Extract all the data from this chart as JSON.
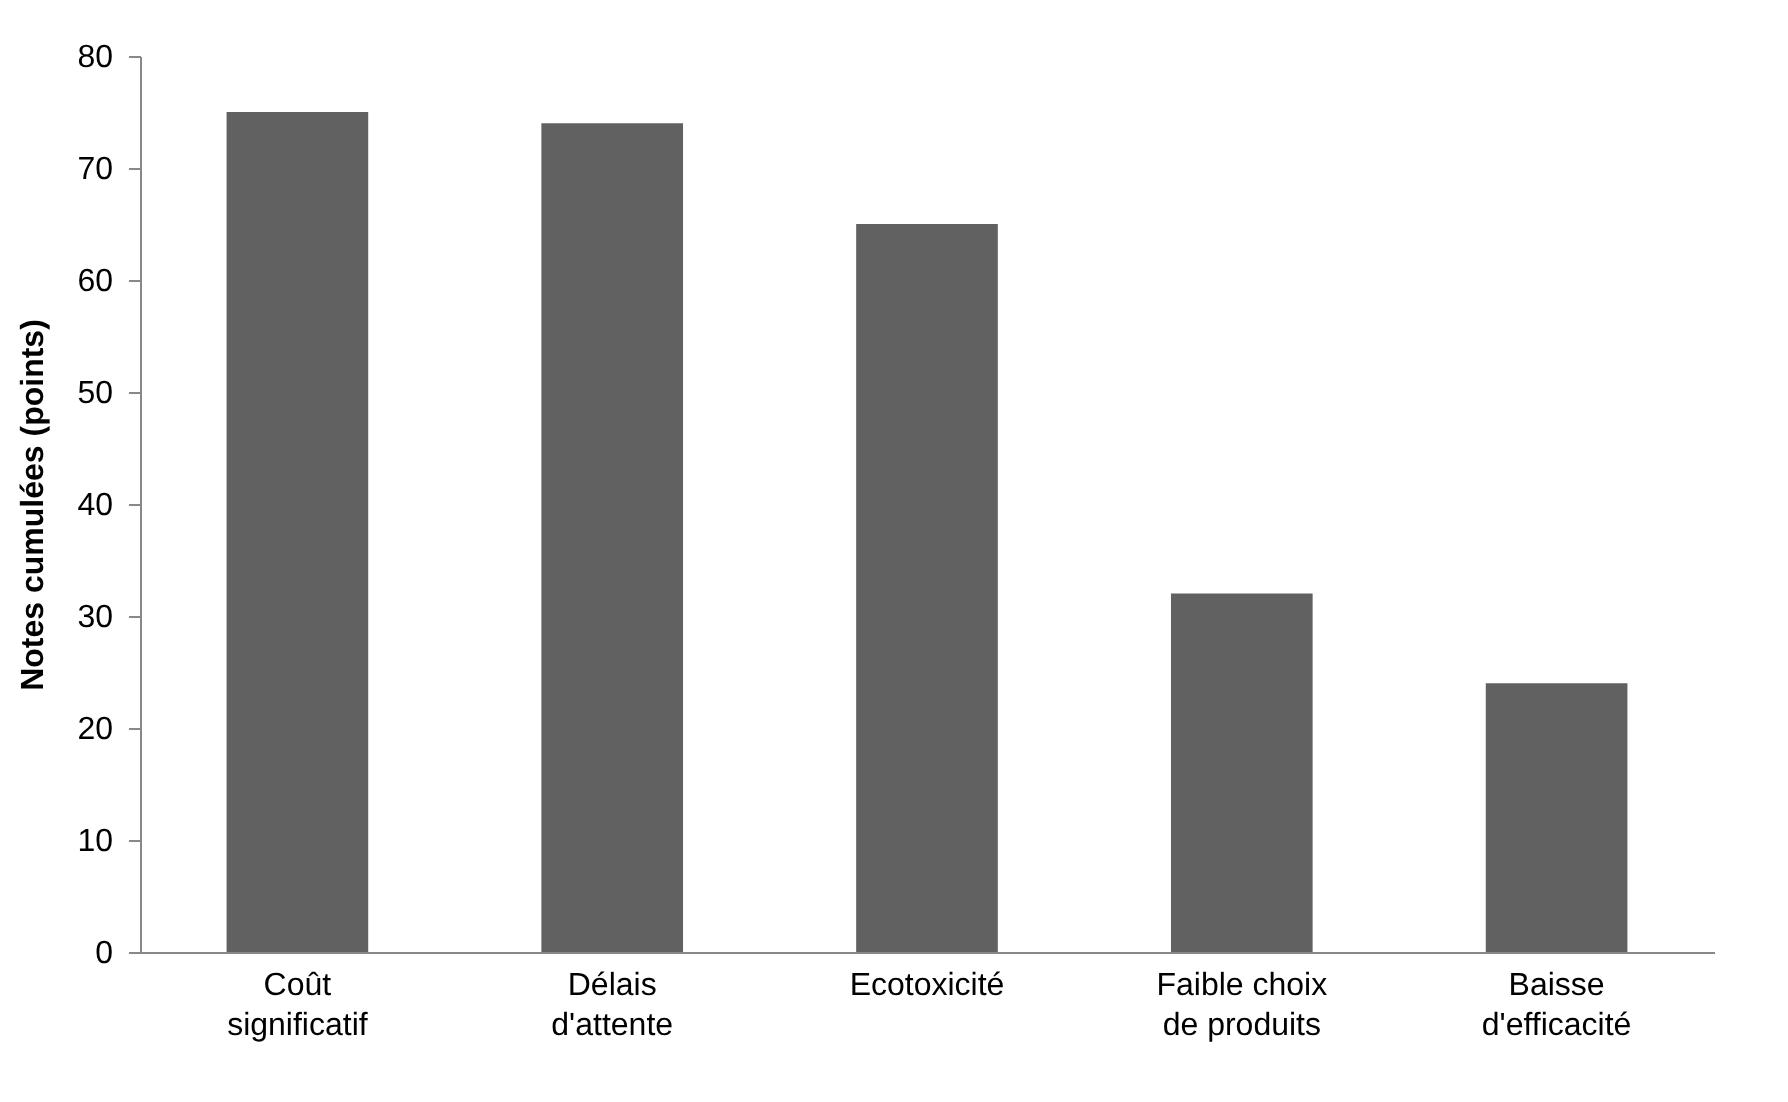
{
  "chart_data": {
    "type": "bar",
    "ylabel": "Notes cumulées  (points)",
    "categories": [
      "Coût significatif",
      "Délais d'attente",
      "Ecotoxicité",
      "Faible choix de produits",
      "Baisse d'efficacité"
    ],
    "values": [
      75,
      74,
      65,
      32,
      24
    ],
    "color": "#616161",
    "ylim": [
      0,
      80
    ],
    "yticks": [
      0,
      10,
      20,
      30,
      40,
      50,
      60,
      70,
      80
    ],
    "grid": false
  }
}
